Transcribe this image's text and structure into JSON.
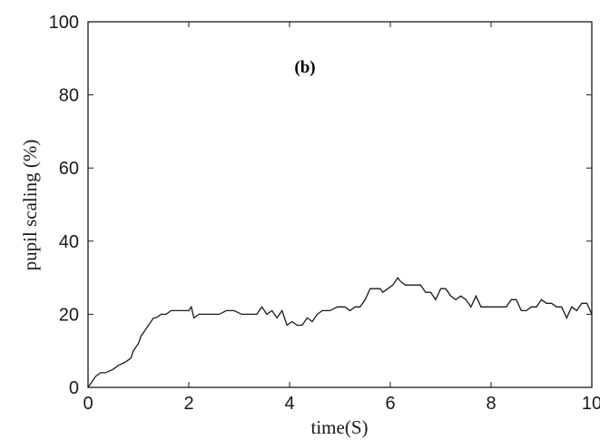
{
  "chart_data": {
    "type": "line",
    "title": "",
    "annotation": "(b)",
    "xlabel": "time(S)",
    "ylabel": "pupil scaling (%)",
    "xlim": [
      0,
      10
    ],
    "ylim": [
      0,
      100
    ],
    "xticks": [
      0,
      2,
      4,
      6,
      8,
      10
    ],
    "yticks": [
      0,
      20,
      40,
      60,
      80,
      100
    ],
    "grid": false,
    "line_color": "#1a1a1a",
    "series": [
      {
        "x": [
          0,
          0.05,
          0.15,
          0.25,
          0.35,
          0.5,
          0.6,
          0.75,
          0.85,
          0.9,
          1.0,
          1.05,
          1.1,
          1.2,
          1.3,
          1.35,
          1.45,
          1.55,
          1.65,
          1.75,
          1.9,
          2.0,
          2.05,
          2.1,
          2.2,
          2.3,
          2.45,
          2.6,
          2.75,
          2.9,
          3.05,
          3.2,
          3.35,
          3.45,
          3.55,
          3.65,
          3.75,
          3.85,
          3.95,
          4.05,
          4.15,
          4.25,
          4.35,
          4.45,
          4.55,
          4.65,
          4.8,
          4.95,
          5.1,
          5.2,
          5.3,
          5.4,
          5.5,
          5.6,
          5.7,
          5.8,
          5.85,
          5.95,
          6.05,
          6.15,
          6.2,
          6.3,
          6.4,
          6.5,
          6.6,
          6.7,
          6.8,
          6.9,
          7.0,
          7.1,
          7.2,
          7.3,
          7.4,
          7.5,
          7.6,
          7.7,
          7.8,
          7.9,
          8.0,
          8.1,
          8.2,
          8.3,
          8.4,
          8.5,
          8.6,
          8.7,
          8.8,
          8.9,
          9.0,
          9.1,
          9.2,
          9.3,
          9.4,
          9.5,
          9.6,
          9.7,
          9.8,
          9.9,
          10.0
        ],
        "y": [
          0,
          1,
          3,
          4,
          4,
          5,
          6,
          7,
          8,
          10,
          12,
          14,
          15,
          17,
          19,
          19,
          20,
          20,
          21,
          21,
          21,
          21,
          22,
          19,
          20,
          20,
          20,
          20,
          21,
          21,
          20,
          20,
          20,
          22,
          20,
          21,
          19,
          21,
          17,
          18,
          17,
          17,
          19,
          18,
          20,
          21,
          21,
          22,
          22,
          21,
          22,
          22,
          24,
          27,
          27,
          27,
          26,
          27,
          28,
          30,
          29,
          28,
          28,
          28,
          28,
          26,
          26,
          24,
          27,
          27,
          25,
          24,
          25,
          24,
          22,
          25,
          22,
          22,
          22,
          22,
          22,
          22,
          24,
          24,
          21,
          21,
          22,
          22,
          24,
          23,
          23,
          22,
          22,
          19,
          22,
          21,
          23,
          23,
          20
        ]
      }
    ]
  }
}
